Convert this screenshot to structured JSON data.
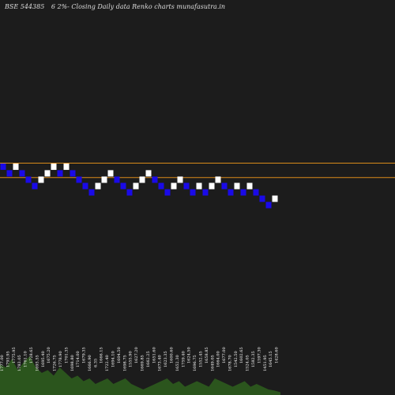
{
  "header": {
    "symbol": "BSE 544385",
    "description": "6  2%-  Closing Daily data  Renko  charts munafasutra.in"
  },
  "chart_data": {
    "type": "renko",
    "title": "BSE 544385 6 2%- Closing Daily data Renko charts munafasutra.in",
    "box_size_pct": 2,
    "colors": {
      "up": "#ffffff",
      "down": "#1a0ae8",
      "line": "#d98a1a",
      "volume": "#2e5c1e"
    },
    "reference_lines": [
      1817.5,
      1767.5
    ],
    "bricks": [
      {
        "dir": "down",
        "price": 1805
      },
      {
        "dir": "down",
        "price": 1782
      },
      {
        "dir": "up",
        "price": 1805
      },
      {
        "dir": "down",
        "price": 1782
      },
      {
        "dir": "down",
        "price": 1760
      },
      {
        "dir": "down",
        "price": 1738
      },
      {
        "dir": "up",
        "price": 1760
      },
      {
        "dir": "up",
        "price": 1782
      },
      {
        "dir": "up",
        "price": 1805
      },
      {
        "dir": "down",
        "price": 1782
      },
      {
        "dir": "up",
        "price": 1805
      },
      {
        "dir": "down",
        "price": 1782
      },
      {
        "dir": "down",
        "price": 1760
      },
      {
        "dir": "down",
        "price": 1738
      },
      {
        "dir": "down",
        "price": 1716
      },
      {
        "dir": "up",
        "price": 1738
      },
      {
        "dir": "up",
        "price": 1760
      },
      {
        "dir": "up",
        "price": 1782
      },
      {
        "dir": "down",
        "price": 1760
      },
      {
        "dir": "down",
        "price": 1738
      },
      {
        "dir": "down",
        "price": 1716
      },
      {
        "dir": "up",
        "price": 1738
      },
      {
        "dir": "up",
        "price": 1760
      },
      {
        "dir": "up",
        "price": 1782
      },
      {
        "dir": "down",
        "price": 1760
      },
      {
        "dir": "down",
        "price": 1738
      },
      {
        "dir": "down",
        "price": 1716
      },
      {
        "dir": "up",
        "price": 1738
      },
      {
        "dir": "up",
        "price": 1760
      },
      {
        "dir": "down",
        "price": 1738
      },
      {
        "dir": "down",
        "price": 1716
      },
      {
        "dir": "up",
        "price": 1738
      },
      {
        "dir": "down",
        "price": 1716
      },
      {
        "dir": "up",
        "price": 1738
      },
      {
        "dir": "up",
        "price": 1760
      },
      {
        "dir": "down",
        "price": 1738
      },
      {
        "dir": "down",
        "price": 1716
      },
      {
        "dir": "up",
        "price": 1738
      },
      {
        "dir": "down",
        "price": 1716
      },
      {
        "dir": "up",
        "price": 1738
      },
      {
        "dir": "down",
        "price": 1716
      },
      {
        "dir": "down",
        "price": 1694
      },
      {
        "dir": "down",
        "price": 1672
      },
      {
        "dir": "up",
        "price": 1694
      }
    ],
    "price_labels": [
      "1777.00",
      "1793.95",
      "1775.95",
      "1783.05",
      "1761.10",
      "1728.65",
      "1693.55",
      "1695.40",
      "1675.20",
      "1726.75",
      "1778.90",
      "1701.35",
      "1698.80",
      "1714.00",
      "1679.35",
      "1666.90",
      "6.35",
      "1666.15",
      "1722.40",
      "1694.10",
      "1604.50",
      "1698.75",
      "1555.90",
      "1627.20",
      "1669.85",
      "1662.25",
      "1651.60",
      "1673.40",
      "1623.35",
      "1600.60",
      "1652.30",
      "1759.40",
      "1624.50",
      "1696.75",
      "1552.45",
      "1658.85",
      "1649.05",
      "1664.00",
      "1677.00",
      "1678.70",
      "1542.50",
      "1602.65",
      "1524.05",
      "1582.35",
      "1597.30",
      "1451.95",
      "1645.15",
      "1428.60"
    ],
    "volumes": [
      0.55,
      0.5,
      0.65,
      0.45,
      0.6,
      0.7,
      0.5,
      0.4,
      0.45,
      0.35,
      0.5,
      0.4,
      0.3,
      0.35,
      0.25,
      0.3,
      0.2,
      0.25,
      0.3,
      0.2,
      0.25,
      0.3,
      0.2,
      0.15,
      0.1,
      0.15,
      0.2,
      0.25,
      0.3,
      0.2,
      0.25,
      0.15,
      0.2,
      0.25,
      0.2,
      0.15,
      0.3,
      0.25,
      0.2,
      0.15,
      0.2,
      0.25,
      0.15,
      0.2,
      0.15,
      0.1,
      0.08,
      0.05
    ]
  }
}
